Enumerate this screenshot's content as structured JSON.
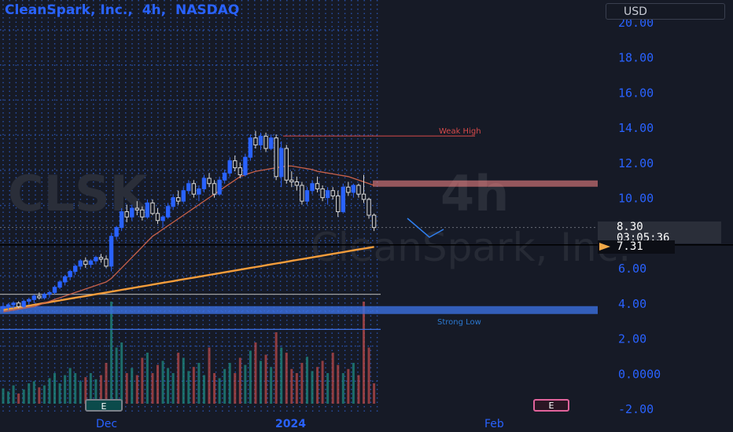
{
  "header": {
    "symbol": "CleanSpark, Inc.,",
    "interval": "4h,",
    "exchange": "NASDAQ"
  },
  "currency": "USD",
  "watermark": {
    "symbol": "CLSK",
    "interval": "4h",
    "name": "CleanSpark, Inc."
  },
  "price_tag": {
    "price": "8.30",
    "countdown": "03:05:36"
  },
  "level_tag": "7.31",
  "event_flags": [
    "E",
    "E"
  ],
  "colors": {
    "background": "#161a26",
    "up": "#2962ff",
    "down": "#d8d8d8",
    "ma_fast": "#c8614a",
    "ma_slow": "#f59d3b",
    "resistance": "#ff8a8a",
    "support": "#3b6fe0"
  },
  "chart_data": {
    "type": "candlestick",
    "interval": "4h",
    "y_axis": {
      "ticks": [
        "-2.00",
        "0.0000",
        "2.00",
        "4.00",
        "6.00",
        "8.00",
        "10.00",
        "12.00",
        "14.00",
        "16.00",
        "18.00",
        "20.00"
      ],
      "range": [
        -2.2,
        20.4
      ],
      "side": "right"
    },
    "x_axis": {
      "ticks": [
        "Dec",
        "2024",
        "Feb"
      ]
    },
    "annotations": [
      {
        "text": "Weak High",
        "price": 13.6
      },
      {
        "text": "Strong Low",
        "price": 2.75
      }
    ],
    "levels": [
      {
        "price": 10.8,
        "role": "resistance-zone",
        "color": "#ff8a8a"
      },
      {
        "price": 3.6,
        "role": "support-zone",
        "color": "#3b6fe0"
      },
      {
        "price": 7.31,
        "role": "horizontal-line",
        "color": "#000000"
      },
      {
        "price": 4.5,
        "role": "horizontal-line",
        "color": "#9e9e9e"
      },
      {
        "price": 2.5,
        "role": "horizontal-line",
        "color": "#3b6fe0"
      }
    ],
    "candles": [
      {
        "o": 3.7,
        "h": 4.0,
        "l": 3.5,
        "c": 3.8
      },
      {
        "o": 3.8,
        "h": 4.0,
        "l": 3.6,
        "c": 3.9
      },
      {
        "o": 3.9,
        "h": 4.1,
        "l": 3.7,
        "c": 4.0
      },
      {
        "o": 4.0,
        "h": 4.1,
        "l": 3.7,
        "c": 3.8
      },
      {
        "o": 3.8,
        "h": 4.2,
        "l": 3.7,
        "c": 4.1
      },
      {
        "o": 4.1,
        "h": 4.3,
        "l": 3.9,
        "c": 4.2
      },
      {
        "o": 4.2,
        "h": 4.5,
        "l": 4.0,
        "c": 4.4
      },
      {
        "o": 4.4,
        "h": 4.6,
        "l": 4.2,
        "c": 4.3
      },
      {
        "o": 4.3,
        "h": 4.6,
        "l": 4.2,
        "c": 4.5
      },
      {
        "o": 4.5,
        "h": 4.7,
        "l": 4.3,
        "c": 4.6
      },
      {
        "o": 4.6,
        "h": 5.0,
        "l": 4.5,
        "c": 4.9
      },
      {
        "o": 4.9,
        "h": 5.3,
        "l": 4.8,
        "c": 5.2
      },
      {
        "o": 5.2,
        "h": 5.6,
        "l": 5.0,
        "c": 5.5
      },
      {
        "o": 5.5,
        "h": 5.9,
        "l": 5.3,
        "c": 5.8
      },
      {
        "o": 5.8,
        "h": 6.2,
        "l": 5.6,
        "c": 6.1
      },
      {
        "o": 6.1,
        "h": 6.5,
        "l": 5.9,
        "c": 6.4
      },
      {
        "o": 6.4,
        "h": 6.6,
        "l": 6.0,
        "c": 6.2
      },
      {
        "o": 6.2,
        "h": 6.5,
        "l": 6.0,
        "c": 6.4
      },
      {
        "o": 6.4,
        "h": 6.7,
        "l": 6.2,
        "c": 6.6
      },
      {
        "o": 6.6,
        "h": 6.8,
        "l": 6.3,
        "c": 6.5
      },
      {
        "o": 6.5,
        "h": 6.7,
        "l": 6.0,
        "c": 6.1
      },
      {
        "o": 6.1,
        "h": 8.0,
        "l": 5.8,
        "c": 7.8
      },
      {
        "o": 7.8,
        "h": 8.4,
        "l": 7.6,
        "c": 8.3
      },
      {
        "o": 8.3,
        "h": 9.4,
        "l": 8.1,
        "c": 9.2
      },
      {
        "o": 9.2,
        "h": 9.6,
        "l": 8.6,
        "c": 8.9
      },
      {
        "o": 8.9,
        "h": 9.6,
        "l": 8.7,
        "c": 9.4
      },
      {
        "o": 9.4,
        "h": 9.8,
        "l": 9.0,
        "c": 9.3
      },
      {
        "o": 9.3,
        "h": 9.5,
        "l": 8.7,
        "c": 8.9
      },
      {
        "o": 8.9,
        "h": 9.9,
        "l": 8.8,
        "c": 9.7
      },
      {
        "o": 9.7,
        "h": 9.9,
        "l": 9.0,
        "c": 9.1
      },
      {
        "o": 9.1,
        "h": 9.4,
        "l": 8.5,
        "c": 8.7
      },
      {
        "o": 8.7,
        "h": 9.0,
        "l": 8.3,
        "c": 8.9
      },
      {
        "o": 8.9,
        "h": 9.7,
        "l": 8.8,
        "c": 9.5
      },
      {
        "o": 9.5,
        "h": 10.2,
        "l": 9.3,
        "c": 10.0
      },
      {
        "o": 10.0,
        "h": 10.4,
        "l": 9.6,
        "c": 9.8
      },
      {
        "o": 9.8,
        "h": 10.6,
        "l": 9.7,
        "c": 10.4
      },
      {
        "o": 10.4,
        "h": 11.0,
        "l": 10.2,
        "c": 10.8
      },
      {
        "o": 10.8,
        "h": 11.0,
        "l": 10.0,
        "c": 10.2
      },
      {
        "o": 10.2,
        "h": 10.7,
        "l": 9.8,
        "c": 10.5
      },
      {
        "o": 10.5,
        "h": 11.3,
        "l": 10.3,
        "c": 11.1
      },
      {
        "o": 11.1,
        "h": 11.4,
        "l": 10.6,
        "c": 10.8
      },
      {
        "o": 10.8,
        "h": 11.0,
        "l": 10.0,
        "c": 10.2
      },
      {
        "o": 10.2,
        "h": 11.2,
        "l": 10.1,
        "c": 11.0
      },
      {
        "o": 11.0,
        "h": 11.6,
        "l": 10.8,
        "c": 11.4
      },
      {
        "o": 11.4,
        "h": 12.3,
        "l": 11.2,
        "c": 12.1
      },
      {
        "o": 12.1,
        "h": 12.4,
        "l": 11.5,
        "c": 11.7
      },
      {
        "o": 11.7,
        "h": 12.0,
        "l": 11.1,
        "c": 11.3
      },
      {
        "o": 11.3,
        "h": 12.5,
        "l": 11.2,
        "c": 12.3
      },
      {
        "o": 12.3,
        "h": 13.6,
        "l": 12.1,
        "c": 13.4
      },
      {
        "o": 13.4,
        "h": 13.8,
        "l": 12.8,
        "c": 13.0
      },
      {
        "o": 13.0,
        "h": 13.7,
        "l": 12.7,
        "c": 13.5
      },
      {
        "o": 13.5,
        "h": 13.7,
        "l": 12.6,
        "c": 12.8
      },
      {
        "o": 12.8,
        "h": 13.6,
        "l": 12.7,
        "c": 13.4
      },
      {
        "o": 13.4,
        "h": 13.6,
        "l": 11.0,
        "c": 11.2
      },
      {
        "o": 11.2,
        "h": 13.2,
        "l": 10.6,
        "c": 12.8
      },
      {
        "o": 12.8,
        "h": 13.0,
        "l": 10.8,
        "c": 11.0
      },
      {
        "o": 11.0,
        "h": 11.5,
        "l": 10.6,
        "c": 10.9
      },
      {
        "o": 10.9,
        "h": 11.2,
        "l": 10.4,
        "c": 10.7
      },
      {
        "o": 10.7,
        "h": 10.9,
        "l": 9.6,
        "c": 9.8
      },
      {
        "o": 9.8,
        "h": 10.6,
        "l": 9.6,
        "c": 10.4
      },
      {
        "o": 10.4,
        "h": 11.0,
        "l": 10.2,
        "c": 10.8
      },
      {
        "o": 10.8,
        "h": 11.2,
        "l": 10.3,
        "c": 10.5
      },
      {
        "o": 10.5,
        "h": 10.7,
        "l": 9.8,
        "c": 10.0
      },
      {
        "o": 10.0,
        "h": 10.6,
        "l": 9.6,
        "c": 10.4
      },
      {
        "o": 10.4,
        "h": 10.6,
        "l": 9.9,
        "c": 10.1
      },
      {
        "o": 10.1,
        "h": 10.4,
        "l": 8.9,
        "c": 9.2
      },
      {
        "o": 9.2,
        "h": 10.8,
        "l": 9.1,
        "c": 10.6
      },
      {
        "o": 10.6,
        "h": 10.9,
        "l": 10.1,
        "c": 10.3
      },
      {
        "o": 10.3,
        "h": 10.8,
        "l": 10.0,
        "c": 10.7
      },
      {
        "o": 10.7,
        "h": 10.8,
        "l": 10.0,
        "c": 10.2
      },
      {
        "o": 10.2,
        "h": 11.3,
        "l": 9.7,
        "c": 9.9
      },
      {
        "o": 9.9,
        "h": 10.0,
        "l": 8.8,
        "c": 9.0
      },
      {
        "o": 9.0,
        "h": 9.1,
        "l": 8.1,
        "c": 8.3
      }
    ],
    "volume_relative": [
      0.15,
      0.12,
      0.18,
      0.1,
      0.14,
      0.2,
      0.22,
      0.16,
      0.18,
      0.25,
      0.3,
      0.2,
      0.28,
      0.35,
      0.3,
      0.22,
      0.26,
      0.3,
      0.24,
      0.28,
      0.4,
      1.0,
      0.55,
      0.6,
      0.3,
      0.35,
      0.28,
      0.45,
      0.5,
      0.3,
      0.38,
      0.42,
      0.35,
      0.3,
      0.5,
      0.45,
      0.32,
      0.36,
      0.4,
      0.28,
      0.55,
      0.3,
      0.25,
      0.34,
      0.4,
      0.3,
      0.45,
      0.38,
      0.52,
      0.6,
      0.42,
      0.48,
      0.36,
      0.7,
      0.55,
      0.5,
      0.34,
      0.3,
      0.4,
      0.46,
      0.32,
      0.36,
      0.42,
      0.3,
      0.5,
      0.38,
      0.3,
      0.34,
      0.4,
      0.28,
      1.0,
      0.55,
      0.2
    ],
    "moving_averages": [
      {
        "color": "#f59d3b",
        "values": [
          3.6,
          3.65,
          3.7,
          3.75,
          3.8,
          3.85,
          3.9,
          3.95,
          4.0,
          4.05,
          4.1,
          4.15,
          4.2,
          4.25,
          4.3,
          4.35,
          4.4,
          4.45,
          4.5,
          4.55,
          4.6,
          4.65,
          4.7,
          4.75,
          4.8,
          4.85,
          4.9,
          4.95,
          5.0,
          5.05,
          5.1,
          5.15,
          5.2,
          5.25,
          5.3,
          5.35,
          5.4,
          5.45,
          5.5,
          5.55,
          5.6,
          5.65,
          5.7,
          5.75,
          5.8,
          5.85,
          5.9,
          5.95,
          6.0,
          6.05,
          6.1,
          6.15,
          6.2,
          6.25,
          6.3,
          6.35,
          6.4,
          6.45,
          6.5,
          6.55,
          6.6,
          6.65,
          6.7,
          6.75,
          6.8,
          6.85,
          6.9,
          6.95,
          7.0,
          7.05,
          7.1,
          7.15,
          7.2
        ]
      },
      {
        "color": "#c8614a",
        "values": [
          3.5,
          3.55,
          3.6,
          3.65,
          3.7,
          3.75,
          3.8,
          3.9,
          4.0,
          4.1,
          4.2,
          4.3,
          4.4,
          4.5,
          4.6,
          4.7,
          4.8,
          4.9,
          5.0,
          5.1,
          5.2,
          5.4,
          5.7,
          6.0,
          6.3,
          6.6,
          6.9,
          7.2,
          7.5,
          7.8,
          8.0,
          8.2,
          8.4,
          8.6,
          8.8,
          9.0,
          9.2,
          9.4,
          9.6,
          9.8,
          10.0,
          10.2,
          10.4,
          10.6,
          10.8,
          11.0,
          11.2,
          11.3,
          11.4,
          11.5,
          11.55,
          11.6,
          11.65,
          11.7,
          11.75,
          11.8,
          11.8,
          11.75,
          11.7,
          11.65,
          11.6,
          11.5,
          11.45,
          11.4,
          11.35,
          11.3,
          11.25,
          11.2,
          11.1,
          11.0,
          10.9,
          10.8,
          10.7
        ]
      }
    ]
  }
}
